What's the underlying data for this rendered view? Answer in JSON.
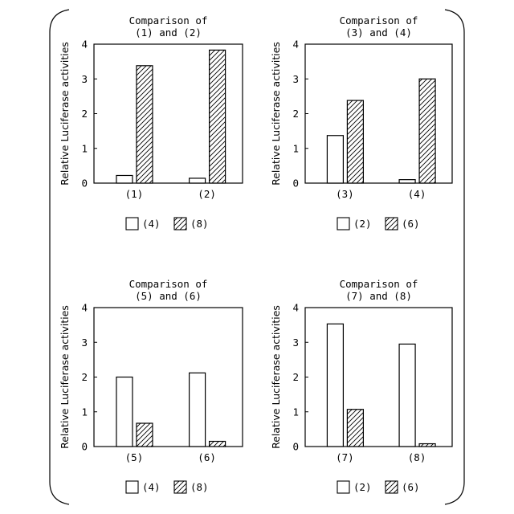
{
  "chart_data": [
    {
      "type": "bar",
      "title_lines": [
        "Comparison of",
        "(1) and (2)"
      ],
      "ylabel": "Relative Luciferase activities",
      "ylim": [
        0,
        4
      ],
      "yticks": [
        "0",
        "1",
        "2",
        "3",
        "4"
      ],
      "categories": [
        "(1)",
        "(2)"
      ],
      "series": [
        {
          "name": "(4)",
          "pattern": "plain",
          "values": [
            0.22,
            0.14
          ]
        },
        {
          "name": "(8)",
          "pattern": "hatched",
          "values": [
            3.38,
            3.83
          ]
        }
      ]
    },
    {
      "type": "bar",
      "title_lines": [
        "Comparison of",
        "(3) and (4)"
      ],
      "ylabel": "Relative Luciferase activities",
      "ylim": [
        0,
        4
      ],
      "yticks": [
        "0",
        "1",
        "2",
        "3",
        "4"
      ],
      "categories": [
        "(3)",
        "(4)"
      ],
      "series": [
        {
          "name": "(2)",
          "pattern": "plain",
          "values": [
            1.37,
            0.1
          ]
        },
        {
          "name": "(6)",
          "pattern": "hatched",
          "values": [
            2.38,
            3.0
          ]
        }
      ]
    },
    {
      "type": "bar",
      "title_lines": [
        "Comparison of",
        "(5) and (6)"
      ],
      "ylabel": "Relative Luciferase activities",
      "ylim": [
        0,
        4
      ],
      "yticks": [
        "0",
        "1",
        "2",
        "3",
        "4"
      ],
      "categories": [
        "(5)",
        "(6)"
      ],
      "series": [
        {
          "name": "(4)",
          "pattern": "plain",
          "values": [
            2.0,
            2.12
          ]
        },
        {
          "name": "(8)",
          "pattern": "hatched",
          "values": [
            0.67,
            0.15
          ]
        }
      ]
    },
    {
      "type": "bar",
      "title_lines": [
        "Comparison of",
        "(7) and (8)"
      ],
      "ylabel": "Relative Luciferase activities",
      "ylim": [
        0,
        4
      ],
      "yticks": [
        "0",
        "1",
        "2",
        "3",
        "4"
      ],
      "categories": [
        "(7)",
        "(8)"
      ],
      "series": [
        {
          "name": "(2)",
          "pattern": "plain",
          "values": [
            3.53,
            2.95
          ]
        },
        {
          "name": "(6)",
          "pattern": "hatched",
          "values": [
            1.07,
            0.08
          ]
        }
      ]
    }
  ]
}
